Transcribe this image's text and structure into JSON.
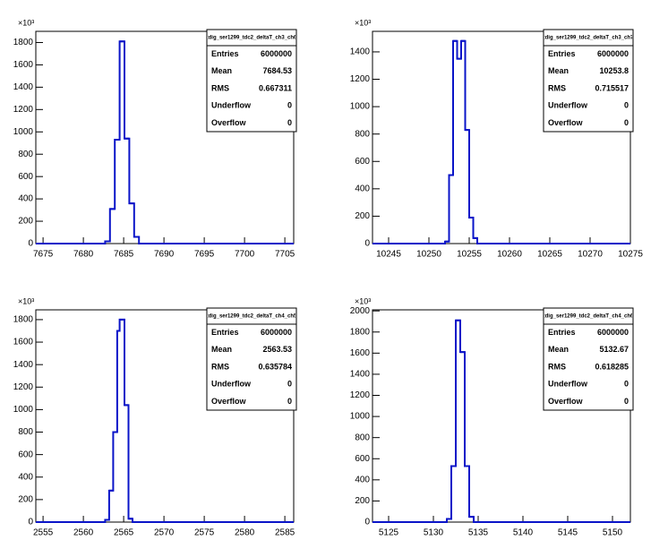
{
  "chart_data": [
    {
      "type": "histogram",
      "title": "tdig_ser1299_tdc2_deltaT_ch3_ch6",
      "y_exponent": "×10³",
      "color": "#0a14c8",
      "bins": [
        7674.1,
        7682.7,
        7683.3,
        7683.9,
        7684.5,
        7685.1,
        7685.7,
        7686.3,
        7686.9,
        7706.1
      ],
      "counts": [
        0,
        20,
        310,
        930,
        1810,
        940,
        360,
        60,
        0
      ],
      "xlim": [
        7674.1,
        7706.1
      ],
      "xticks": [
        7675,
        7680,
        7685,
        7690,
        7695,
        7700,
        7705
      ],
      "ylim": [
        0,
        1900
      ],
      "yticks": [
        0,
        200,
        400,
        600,
        800,
        1000,
        1200,
        1400,
        1600,
        1800
      ],
      "stats": [
        {
          "label": "Entries",
          "value": 6000000
        },
        {
          "label": "Mean",
          "value": 7684.53
        },
        {
          "label": "RMS",
          "value": 0.667311
        },
        {
          "label": "Underflow",
          "value": 0
        },
        {
          "label": "Overflow",
          "value": 0
        }
      ]
    },
    {
      "type": "histogram",
      "title": "tdig_ser1299_tdc2_deltaT_ch3_ch7",
      "y_exponent": "×10³",
      "color": "#0a14c8",
      "bins": [
        10243,
        10252,
        10252.5,
        10253,
        10253.5,
        10254,
        10254.5,
        10255,
        10255.5,
        10256,
        10275
      ],
      "counts": [
        0,
        15,
        500,
        1480,
        1350,
        1480,
        830,
        190,
        40,
        0
      ],
      "xlim": [
        10243,
        10275
      ],
      "xticks": [
        10245,
        10250,
        10255,
        10260,
        10265,
        10270,
        10275
      ],
      "ylim": [
        0,
        1550
      ],
      "yticks": [
        0,
        200,
        400,
        600,
        800,
        1000,
        1200,
        1400
      ],
      "stats": [
        {
          "label": "Entries",
          "value": 6000000
        },
        {
          "label": "Mean",
          "value": 10253.8
        },
        {
          "label": "RMS",
          "value": 0.715517
        },
        {
          "label": "Underflow",
          "value": 0
        },
        {
          "label": "Overflow",
          "value": 0
        }
      ]
    },
    {
      "type": "histogram",
      "title": "tdig_ser1299_tdc2_deltaT_ch4_ch5",
      "y_exponent": "×10³",
      "color": "#0a14c8",
      "bins": [
        2554.1,
        2562.7,
        2563.2,
        2563.7,
        2564.2,
        2564.5,
        2565.1,
        2565.6,
        2566.1,
        2586.1
      ],
      "counts": [
        0,
        20,
        280,
        800,
        1700,
        1800,
        1040,
        30,
        0
      ],
      "xlim": [
        2554.1,
        2586.1
      ],
      "xticks": [
        2555,
        2560,
        2565,
        2570,
        2575,
        2580,
        2585
      ],
      "ylim": [
        0,
        1887
      ],
      "yticks": [
        0,
        200,
        400,
        600,
        800,
        1000,
        1200,
        1400,
        1600,
        1800
      ],
      "stats": [
        {
          "label": "Entries",
          "value": 6000000
        },
        {
          "label": "Mean",
          "value": 2563.53
        },
        {
          "label": "RMS",
          "value": 0.635784
        },
        {
          "label": "Underflow",
          "value": 0
        },
        {
          "label": "Overflow",
          "value": 0
        }
      ]
    },
    {
      "type": "histogram",
      "title": "tdig_ser1299_tdc2_deltaT_ch4_ch6",
      "y_exponent": "×10³",
      "color": "#0a14c8",
      "bins": [
        5123.2,
        5131.5,
        5132,
        5132.5,
        5133,
        5133.5,
        5134,
        5134.5,
        5152
      ],
      "counts": [
        0,
        30,
        530,
        1910,
        1610,
        530,
        50,
        0
      ],
      "xlim": [
        5123.2,
        5152
      ],
      "xticks": [
        5125,
        5130,
        5135,
        5140,
        5145,
        5150
      ],
      "ylim": [
        0,
        2010
      ],
      "yticks": [
        0,
        200,
        400,
        600,
        800,
        1000,
        1200,
        1400,
        1600,
        1800,
        2000
      ],
      "stats": [
        {
          "label": "Entries",
          "value": 6000000
        },
        {
          "label": "Mean",
          "value": 5132.67
        },
        {
          "label": "RMS",
          "value": 0.618285
        },
        {
          "label": "Underflow",
          "value": 0
        },
        {
          "label": "Overflow",
          "value": 0
        }
      ]
    }
  ]
}
